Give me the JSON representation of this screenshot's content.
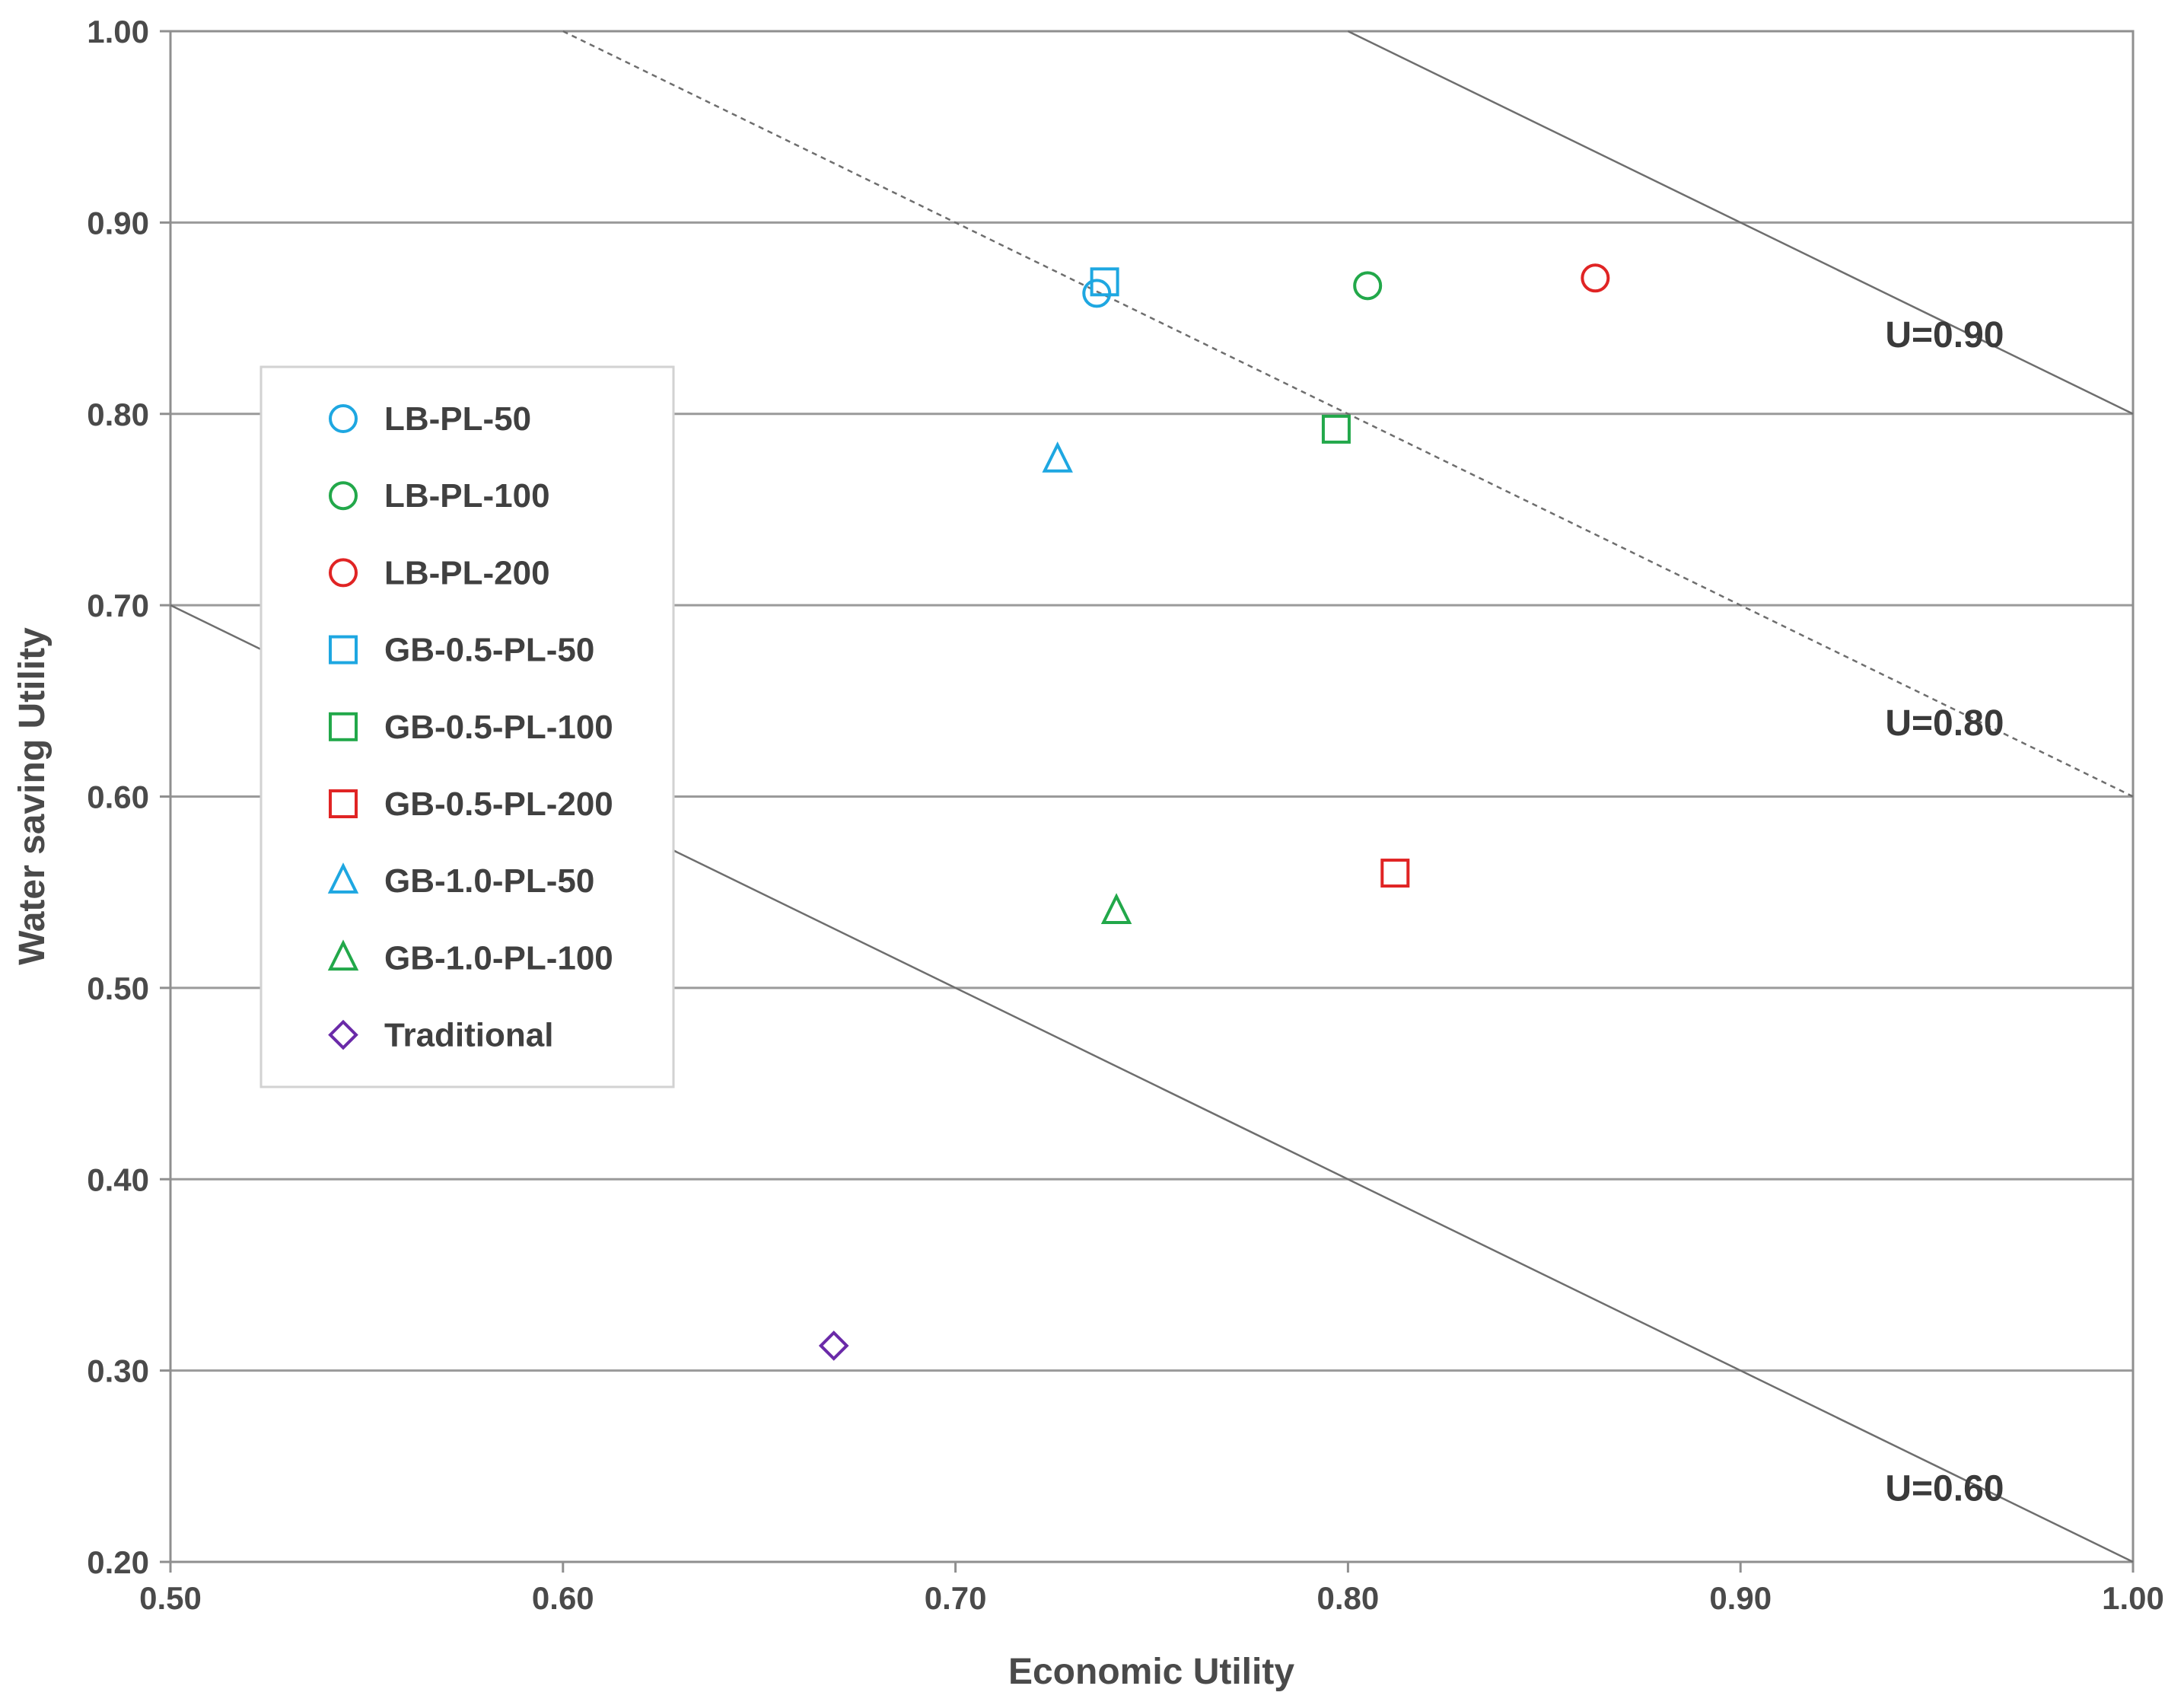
{
  "chart_data": {
    "type": "scatter",
    "title": "",
    "xlabel": "Economic Utility",
    "ylabel": "Water saving Utility",
    "xlim": [
      0.5,
      1.0
    ],
    "ylim": [
      0.2,
      1.0
    ],
    "xticks": [
      "0.50",
      "0.60",
      "0.70",
      "0.80",
      "0.90",
      "1.00"
    ],
    "yticks": [
      "0.20",
      "0.30",
      "0.40",
      "0.50",
      "0.60",
      "0.70",
      "0.80",
      "0.90",
      "1.00"
    ],
    "grid": "horizontal",
    "legend_position": "left-middle",
    "series": [
      {
        "name": "LB-PL-50",
        "marker": "circle",
        "color": "#1ea7e1",
        "x": 0.736,
        "y": 0.863
      },
      {
        "name": "LB-PL-100",
        "marker": "circle",
        "color": "#22a84a",
        "x": 0.805,
        "y": 0.867
      },
      {
        "name": "LB-PL-200",
        "marker": "circle",
        "color": "#e02424",
        "x": 0.863,
        "y": 0.871
      },
      {
        "name": "GB-0.5-PL-50",
        "marker": "square",
        "color": "#1ea7e1",
        "x": 0.738,
        "y": 0.869
      },
      {
        "name": "GB-0.5-PL-100",
        "marker": "square",
        "color": "#22a84a",
        "x": 0.797,
        "y": 0.792
      },
      {
        "name": "GB-0.5-PL-200",
        "marker": "square",
        "color": "#e02424",
        "x": 0.812,
        "y": 0.56
      },
      {
        "name": "GB-1.0-PL-50",
        "marker": "triangle",
        "color": "#1ea7e1",
        "x": 0.726,
        "y": 0.776
      },
      {
        "name": "GB-1.0-PL-100",
        "marker": "triangle",
        "color": "#22a84a",
        "x": 0.741,
        "y": 0.54
      },
      {
        "name": "Traditional",
        "marker": "diamond",
        "color": "#6a2aa8",
        "x": 0.669,
        "y": 0.313
      }
    ],
    "iso_utility_lines": [
      {
        "label": "U=0.90",
        "style": "solid",
        "points": [
          [
            0.8,
            1.0
          ],
          [
            1.0,
            0.8
          ]
        ]
      },
      {
        "label": "U=0.80",
        "style": "dashed",
        "points": [
          [
            0.6,
            1.0
          ],
          [
            1.0,
            0.6
          ]
        ]
      },
      {
        "label": "U=0.60",
        "style": "solid",
        "points": [
          [
            0.5,
            0.7
          ],
          [
            1.0,
            0.2
          ]
        ]
      }
    ]
  }
}
